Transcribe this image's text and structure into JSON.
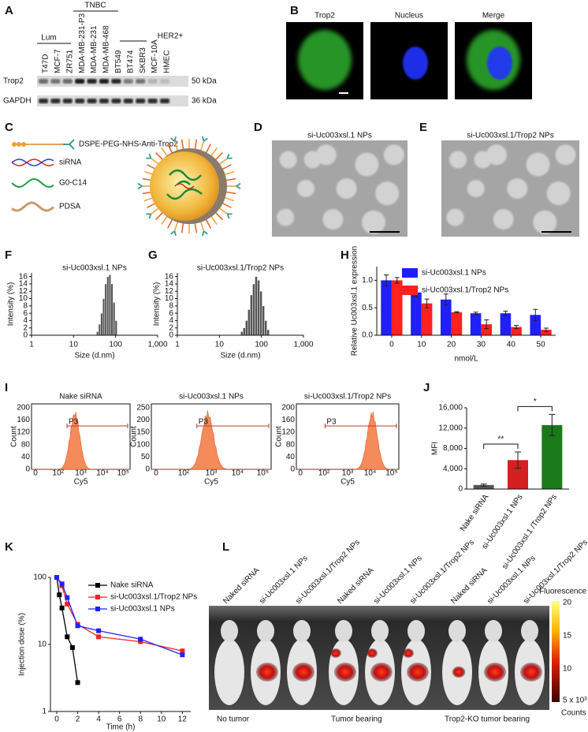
{
  "panels": [
    "A",
    "B",
    "C",
    "D",
    "E",
    "F",
    "G",
    "H",
    "I",
    "J",
    "K",
    "L"
  ],
  "blot": {
    "groups": [
      "TNBC",
      "Lum",
      "HER2+"
    ],
    "cell_lines": [
      "T47D",
      "MCF-7",
      "ZR751",
      "MDA-MB-231-P3",
      "MDA-MB-231",
      "MDA-MB-468",
      "BT549",
      "BT474",
      "SKBR3",
      "MCF-10A",
      "HMEC"
    ],
    "rows": [
      "Trop2",
      "GAPDH"
    ],
    "sizes": [
      "50 kDa",
      "36 kDa"
    ]
  },
  "microscopy": {
    "channels": [
      "Trop2",
      "Nucleus",
      "Merge"
    ]
  },
  "schematic": {
    "components": [
      "DSPE-PEG-NHS-Anti-Trop2",
      "siRNA",
      "G0-C14",
      "PDSA"
    ]
  },
  "tem": {
    "titles": [
      "si-Uc003xsl.1 NPs",
      "si-Uc003xsl.1/Trop2 NPs"
    ]
  },
  "flow": {
    "titles": [
      "Nake siRNA",
      "si-Uc003xsl.1 NPs",
      "si-Uc003xsl.1/Trop2 NPs"
    ],
    "y_label": "Count",
    "x_label": "Cy5",
    "gate": "P3",
    "xticks": [
      "0",
      "10²",
      "10³",
      "10⁴",
      "10⁵"
    ],
    "yticks": [
      [
        "0",
        "40",
        "80",
        "120",
        "160",
        "200"
      ],
      [
        "0",
        "50",
        "100",
        "150",
        "200",
        "250"
      ],
      [
        "0",
        "40",
        "80",
        "120",
        "160",
        "200"
      ]
    ]
  },
  "imaging": {
    "columns": [
      "Naked siRNA",
      "si-Uc003xsl.1 NPs",
      "si-Uc003xsl.1/Trop2 NPs"
    ],
    "groups": [
      "No tumor",
      "Tumor bearing",
      "Trop2-KO tumor bearing"
    ],
    "colorbar": {
      "title": "Fluorescence",
      "ticks": [
        "20",
        "15",
        "10",
        "5 x 10³"
      ],
      "unit": "Counts"
    }
  },
  "chart_data": [
    {
      "type": "histogram",
      "title": "si-Uc003xsl.1 NPs",
      "x_label": "Size (d.nm)",
      "y_label": "Intensity (%)",
      "bins": [
        35,
        39.2,
        43.9,
        49.2,
        55.1,
        61.7,
        69.1,
        77.4,
        86.7,
        97.1,
        108.8
      ],
      "values": [
        1,
        3,
        6,
        10,
        14,
        16,
        16.5,
        14,
        9,
        4
      ],
      "color": "#555555",
      "xscale": "log",
      "xlim": [
        1,
        1000
      ],
      "xticks": [
        1,
        10,
        100,
        {
          "value": 1000,
          "label": "1,000"
        }
      ],
      "ylim": [
        0,
        17
      ],
      "yticks": [
        0,
        2,
        4,
        6,
        8,
        10,
        12,
        14,
        16
      ]
    },
    {
      "type": "histogram",
      "title": "si-Uc003xsl.1/Trop2 NPs",
      "x_label": "Size (d.nm)",
      "y_label": "Intensity (%)",
      "bins": [
        32,
        36.5,
        41.6,
        47.4,
        54,
        61.6,
        70.2,
        80,
        91.2,
        104,
        118.6,
        135.2,
        154
      ],
      "values": [
        1,
        2,
        4,
        7,
        11,
        14,
        16,
        15,
        12,
        8,
        4,
        1.5
      ],
      "color": "#555555",
      "xscale": "log",
      "xlim": [
        1,
        1000
      ],
      "xticks": [
        1,
        10,
        100,
        {
          "value": 1000,
          "label": "1,000"
        }
      ],
      "ylim": [
        0,
        17
      ],
      "yticks": [
        0,
        2,
        4,
        6,
        8,
        10,
        12,
        14,
        16
      ]
    },
    {
      "type": "grouped_bar",
      "x_label": "nmol/L",
      "y_label": "Relative Uc003xsl.1 expression",
      "categories": [
        "0",
        "10",
        "20",
        "30",
        "40",
        "50"
      ],
      "series": [
        {
          "name": "si-Uc003xsl.1 NPs",
          "color": "#1f1fff",
          "values": [
            1.0,
            0.78,
            0.65,
            0.4,
            0.4,
            0.37
          ],
          "errors": [
            0.1,
            0.08,
            0.1,
            0.02,
            0.04,
            0.1
          ]
        },
        {
          "name": "si-Uc003xsl.1/Trop2 NPs",
          "color": "#ff2020",
          "values": [
            1.0,
            0.58,
            0.42,
            0.2,
            0.15,
            0.1
          ],
          "errors": [
            0.05,
            0.08,
            0.01,
            0.08,
            0.03,
            0.03
          ]
        }
      ],
      "ylim": [
        0,
        1.25
      ],
      "yticks": [
        {
          "value": 0,
          "label": "0.0"
        },
        {
          "value": 0.5,
          "label": "0.5"
        },
        {
          "value": 1,
          "label": "1.0"
        }
      ],
      "legend": "top"
    },
    {
      "type": "bar",
      "y_label": "MFI",
      "categories": [
        "Nake siRNA",
        "si-Uc003xsl.1 NPs",
        "si-Uc003xsl.1 /Trop2 NPs"
      ],
      "values": [
        800,
        5700,
        12600
      ],
      "errors": [
        200,
        1600,
        2100
      ],
      "colors": [
        "#555555",
        "#d42020",
        "#1a7a1a"
      ],
      "ylim": [
        0,
        16000
      ],
      "yticks": [
        0,
        {
          "value": 4000,
          "label": "4,000"
        },
        {
          "value": 8000,
          "label": "8,000"
        },
        {
          "value": 12000,
          "label": "12,000"
        },
        {
          "value": 16000,
          "label": "16,000"
        }
      ],
      "annotations": [
        "**",
        "*"
      ]
    },
    {
      "type": "line",
      "x_label": "Time (h)",
      "y_label": "Injection dose (%)",
      "yscale": "log",
      "xlim": [
        -0.6,
        12.8
      ],
      "xticks": [
        0,
        2,
        4,
        6,
        8,
        10,
        12
      ],
      "ylim": [
        1,
        100
      ],
      "yticks": [
        1,
        10,
        100
      ],
      "legend": "top-right",
      "series": [
        {
          "name": "Nake siRNA",
          "color": "#000000",
          "x": [
            0,
            0.25,
            0.5,
            1,
            1.5,
            2
          ],
          "values": [
            100,
            55,
            35,
            13,
            9,
            2.7
          ]
        },
        {
          "name": "si-Uc003xsl.1/Trop2 NPs",
          "color": "#ff2020",
          "x": [
            0,
            0.5,
            1,
            2,
            4,
            8,
            12
          ],
          "values": [
            100,
            75,
            40,
            20,
            13,
            11,
            8
          ]
        },
        {
          "name": "si-Uc003xsl.1 NPs",
          "color": "#2020ff",
          "x": [
            0,
            0.5,
            1,
            2,
            4,
            8,
            12
          ],
          "values": [
            100,
            80,
            50,
            19,
            16,
            12,
            7
          ]
        }
      ]
    }
  ]
}
